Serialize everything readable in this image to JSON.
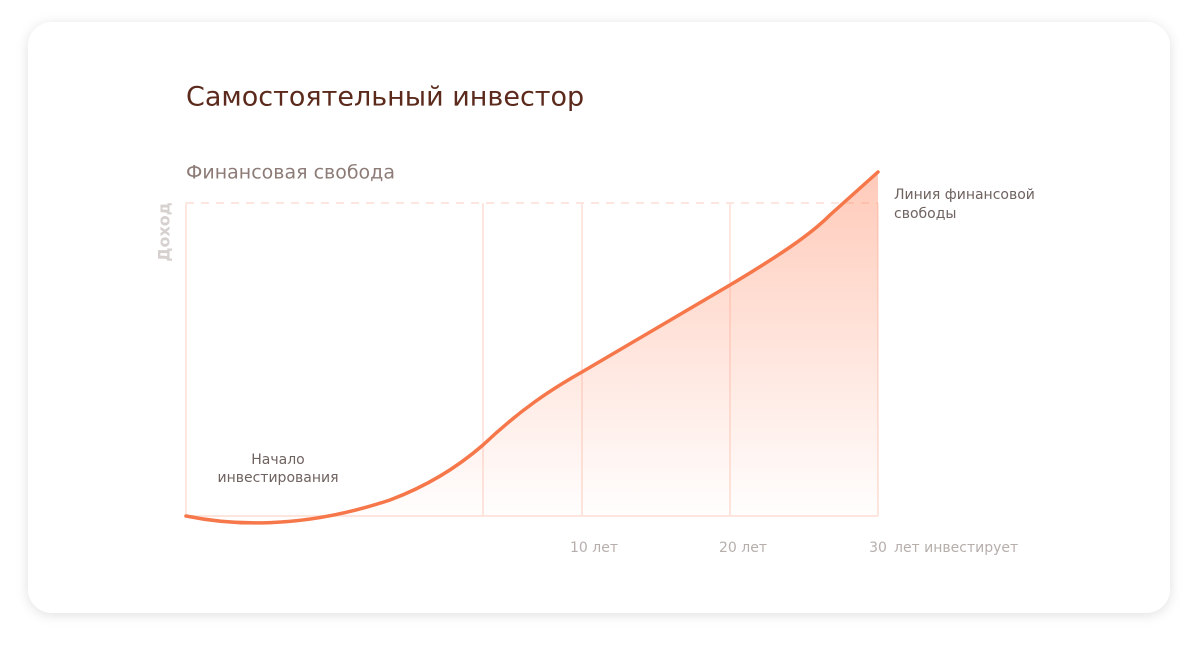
{
  "title": "Самостоятельный инвестор",
  "subtitle": "Финансовая свобода",
  "y_axis_label": "Доход",
  "start_label": [
    "Начало",
    "инвестирования"
  ],
  "freedom_line_label": [
    "Линия финансовой",
    "свободы"
  ],
  "x_labels": [
    "10 лет",
    "20 лет",
    "30"
  ],
  "x_axis_label": "лет инвестирует"
}
